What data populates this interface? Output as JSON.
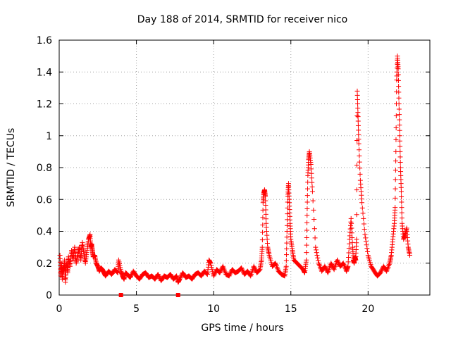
{
  "chart_data": {
    "type": "scatter",
    "title": "Day 188 of 2014, SRMTID for receiver nico",
    "xlabel": "GPS time / hours",
    "ylabel": "SRMTID / TECUs",
    "xlim": [
      0,
      24
    ],
    "ylim": [
      0,
      1.6
    ],
    "xticks": [
      0,
      5,
      10,
      15,
      20
    ],
    "yticks": [
      0,
      0.2,
      0.4,
      0.6,
      0.8,
      1,
      1.2,
      1.4,
      1.6
    ],
    "ytick_labels": [
      "0",
      "0.2",
      "0.4",
      "0.6",
      "0.8",
      "1",
      "1.2",
      "1.4",
      "1.6"
    ],
    "grid": true,
    "marker": "+",
    "marker_color": "#ff0000",
    "series": [
      {
        "name": "SRMTID",
        "x": [
          0.05,
          0.1,
          0.15,
          0.2,
          0.25,
          0.3,
          0.35,
          0.4,
          0.45,
          0.5,
          0.55,
          0.6,
          0.7,
          0.8,
          0.9,
          1.0,
          1.1,
          1.2,
          1.3,
          1.4,
          1.5,
          1.6,
          1.7,
          1.8,
          1.9,
          2.0,
          2.05,
          2.1,
          2.15,
          2.2,
          2.3,
          2.4,
          2.5,
          2.6,
          2.7,
          2.8,
          2.9,
          3.0,
          3.2,
          3.4,
          3.6,
          3.8,
          3.85,
          4.0,
          4.1,
          4.2,
          4.3,
          4.4,
          4.6,
          4.8,
          5.0,
          5.2,
          5.4,
          5.6,
          5.8,
          6.0,
          6.2,
          6.4,
          6.6,
          6.8,
          7.0,
          7.2,
          7.4,
          7.6,
          7.7,
          7.8,
          8.0,
          8.2,
          8.4,
          8.6,
          8.8,
          9.0,
          9.2,
          9.4,
          9.6,
          9.7,
          9.8,
          10.0,
          10.2,
          10.4,
          10.6,
          10.8,
          11.0,
          11.2,
          11.4,
          11.6,
          11.8,
          12.0,
          12.2,
          12.4,
          12.6,
          12.8,
          13.0,
          13.1,
          13.15,
          13.2,
          13.25,
          13.3,
          13.35,
          13.4,
          13.5,
          13.6,
          13.8,
          14.0,
          14.2,
          14.4,
          14.6,
          14.7,
          14.75,
          14.8,
          14.85,
          14.9,
          14.95,
          15.0,
          15.1,
          15.2,
          15.4,
          15.6,
          15.8,
          15.9,
          16.0,
          16.05,
          16.1,
          16.15,
          16.2,
          16.3,
          16.4,
          16.6,
          16.8,
          17.0,
          17.2,
          17.4,
          17.6,
          17.8,
          18.0,
          18.2,
          18.4,
          18.6,
          18.7,
          18.8,
          18.9,
          19.0,
          19.05,
          19.1,
          19.15,
          19.2,
          19.25,
          19.3,
          19.35,
          19.4,
          19.5,
          19.6,
          19.8,
          20.0,
          20.2,
          20.4,
          20.6,
          20.8,
          21.0,
          21.2,
          21.4,
          21.5,
          21.6,
          21.7,
          21.75,
          21.8,
          21.85,
          21.9,
          21.95,
          22.0,
          22.05,
          22.1,
          22.15,
          22.2,
          22.3,
          22.4,
          22.5,
          22.6,
          22.7
        ],
        "y": [
          0.25,
          0.12,
          0.2,
          0.1,
          0.18,
          0.15,
          0.22,
          0.08,
          0.17,
          0.2,
          0.14,
          0.24,
          0.18,
          0.28,
          0.22,
          0.3,
          0.2,
          0.25,
          0.3,
          0.22,
          0.33,
          0.26,
          0.2,
          0.28,
          0.35,
          0.38,
          0.3,
          0.32,
          0.28,
          0.24,
          0.25,
          0.2,
          0.18,
          0.15,
          0.17,
          0.16,
          0.14,
          0.12,
          0.15,
          0.13,
          0.16,
          0.14,
          0.22,
          0.15,
          0.12,
          0.1,
          0.14,
          0.13,
          0.11,
          0.15,
          0.12,
          0.1,
          0.13,
          0.14,
          0.11,
          0.12,
          0.1,
          0.13,
          0.09,
          0.12,
          0.11,
          0.13,
          0.1,
          0.12,
          0.08,
          0.1,
          0.14,
          0.11,
          0.12,
          0.1,
          0.13,
          0.14,
          0.12,
          0.15,
          0.13,
          0.22,
          0.2,
          0.12,
          0.16,
          0.14,
          0.18,
          0.13,
          0.12,
          0.16,
          0.14,
          0.15,
          0.17,
          0.13,
          0.15,
          0.12,
          0.18,
          0.14,
          0.16,
          0.22,
          0.3,
          0.58,
          0.64,
          0.66,
          0.62,
          0.45,
          0.3,
          0.25,
          0.18,
          0.2,
          0.15,
          0.13,
          0.12,
          0.18,
          0.4,
          0.62,
          0.7,
          0.58,
          0.45,
          0.35,
          0.28,
          0.22,
          0.2,
          0.18,
          0.16,
          0.14,
          0.22,
          0.5,
          0.75,
          0.85,
          0.9,
          0.82,
          0.65,
          0.3,
          0.2,
          0.15,
          0.18,
          0.14,
          0.2,
          0.16,
          0.22,
          0.18,
          0.2,
          0.15,
          0.18,
          0.35,
          0.48,
          0.3,
          0.22,
          0.2,
          0.24,
          0.22,
          0.35,
          1.28,
          1.12,
          0.95,
          0.72,
          0.58,
          0.38,
          0.25,
          0.18,
          0.15,
          0.12,
          0.14,
          0.18,
          0.15,
          0.2,
          0.25,
          0.35,
          0.45,
          0.55,
          0.9,
          1.35,
          1.5,
          1.42,
          1.2,
          1.0,
          0.8,
          0.65,
          0.45,
          0.35,
          0.38,
          0.42,
          0.3,
          0.25
        ]
      }
    ],
    "outliers": [
      {
        "x": 4.0,
        "y": 0.0
      },
      {
        "x": 7.7,
        "y": 0.0
      }
    ]
  }
}
